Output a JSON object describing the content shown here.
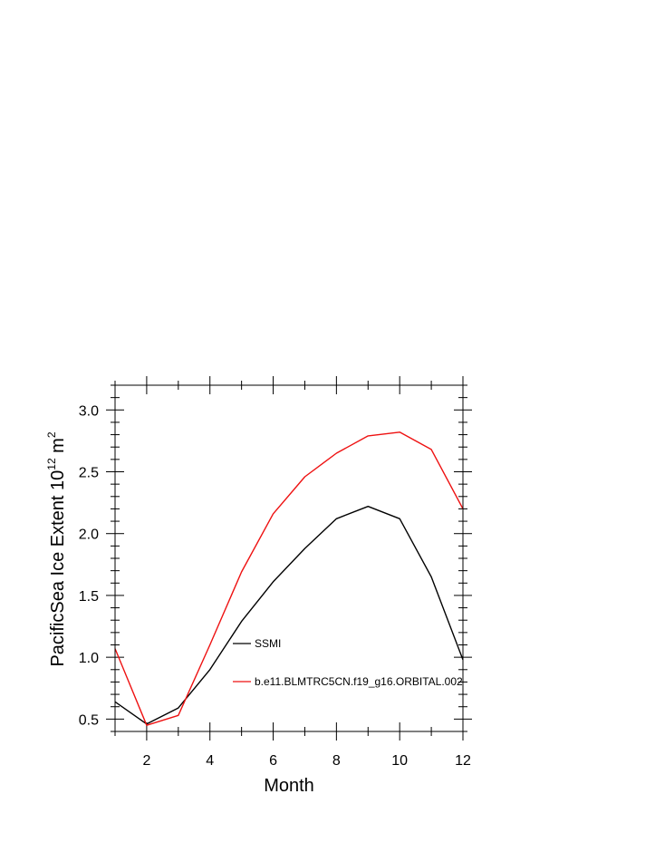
{
  "chart_data": {
    "type": "line",
    "title": "",
    "xlabel": "Month",
    "ylabel": {
      "base": "PacificSea Ice Extent 10",
      "exp1": "12",
      "unit": " m",
      "exp2": "2"
    },
    "xlim": [
      1,
      12
    ],
    "ylim": [
      0.4,
      3.2
    ],
    "xticks": [
      2,
      4,
      6,
      8,
      10,
      12
    ],
    "xtick_labels": [
      "2",
      "4",
      "6",
      "8",
      "10",
      "12"
    ],
    "yticks": [
      0.5,
      1.0,
      1.5,
      2.0,
      2.5,
      3.0
    ],
    "ytick_labels": [
      "0.5",
      "1.0",
      "1.5",
      "2.0",
      "2.5",
      "3.0"
    ],
    "grid": false,
    "legend_position": "inside-lower-right",
    "x": [
      1,
      2,
      3,
      4,
      5,
      6,
      7,
      8,
      9,
      10,
      11,
      12
    ],
    "series": [
      {
        "name": "SSMI",
        "color": "#000000",
        "values": [
          0.64,
          0.46,
          0.59,
          0.9,
          1.29,
          1.61,
          1.88,
          2.12,
          2.22,
          2.12,
          1.65,
          0.98
        ]
      },
      {
        "name": "b.e11.BLMTRC5CN.f19_g16.ORBITAL.002",
        "color": "#ee1111",
        "values": [
          1.07,
          0.45,
          0.53,
          1.1,
          1.69,
          2.16,
          2.46,
          2.65,
          2.79,
          2.82,
          2.68,
          2.2
        ]
      }
    ]
  }
}
